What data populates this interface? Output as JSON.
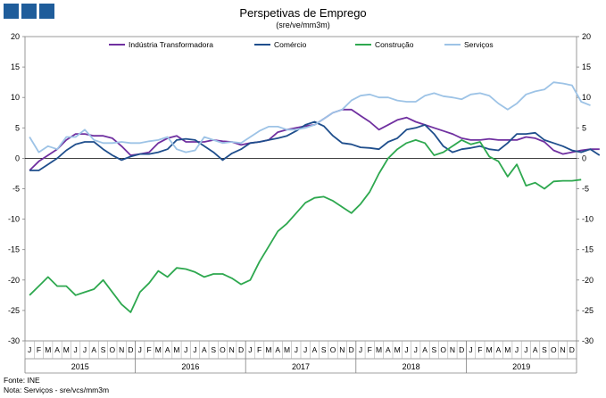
{
  "header": {
    "title": "Perspetivas de Emprego",
    "subtitle": "(sre/ve/mm3m)"
  },
  "footer": {
    "source": "Fonte: INE",
    "note": "Nota: Serviços - sre/vcs/mm3m"
  },
  "chart_data": {
    "type": "line",
    "title": "Perspetivas de Emprego",
    "subtitle": "(sre/ve/mm3m)",
    "xlabel": "",
    "ylabel": "",
    "ylim": [
      -30,
      20
    ],
    "yticks": [
      20,
      15,
      10,
      5,
      0,
      -5,
      -10,
      -15,
      -20,
      -25,
      -30
    ],
    "month_labels": [
      "J",
      "F",
      "M",
      "A",
      "M",
      "J",
      "J",
      "A",
      "S",
      "O",
      "N",
      "D"
    ],
    "years": [
      "2015",
      "2016",
      "2017",
      "2018",
      "2019"
    ],
    "grid": false,
    "legend_position": "top",
    "series": [
      {
        "name": "Indústria Transformadora",
        "color": "#7030a0",
        "values": [
          -2.0,
          -0.5,
          0.5,
          1.5,
          3.0,
          4.0,
          4.0,
          3.7,
          3.7,
          3.3,
          2.0,
          0.5,
          0.7,
          1.0,
          2.5,
          3.3,
          3.7,
          2.7,
          2.7,
          2.7,
          3.0,
          2.8,
          2.7,
          2.2,
          2.5,
          2.7,
          3.0,
          4.3,
          4.7,
          5.0,
          5.3,
          5.5,
          6.5,
          7.5,
          8.0,
          8.0,
          7.0,
          6.0,
          4.7,
          5.5,
          6.3,
          6.7,
          6.0,
          5.5,
          5.0,
          4.5,
          4.0,
          3.3,
          3.0,
          3.0,
          3.2,
          3.0,
          3.0,
          3.0,
          3.5,
          3.3,
          2.7,
          1.3,
          0.7,
          1.0,
          1.3,
          1.5,
          1.5
        ]
      },
      {
        "name": "Comércio",
        "color": "#1f4e8c",
        "values": [
          -2.0,
          -2.0,
          -1.0,
          0.0,
          1.3,
          2.3,
          2.7,
          2.7,
          1.5,
          0.5,
          -0.3,
          0.3,
          0.7,
          0.7,
          1.0,
          1.5,
          3.0,
          3.2,
          3.0,
          2.0,
          1.0,
          -0.3,
          0.8,
          1.5,
          2.5,
          2.7,
          3.0,
          3.3,
          3.7,
          4.5,
          5.5,
          6.0,
          5.3,
          3.7,
          2.5,
          2.3,
          1.8,
          1.7,
          1.5,
          2.7,
          3.3,
          4.7,
          5.0,
          5.5,
          4.0,
          2.0,
          1.0,
          1.5,
          1.7,
          2.0,
          1.5,
          1.3,
          2.5,
          4.0,
          4.0,
          4.2,
          3.0,
          2.5,
          2.0,
          1.3,
          1.0,
          1.5,
          0.5
        ]
      },
      {
        "name": "Construção",
        "color": "#2ea84f",
        "values": [
          -22.5,
          -21.0,
          -19.5,
          -21.0,
          -21.0,
          -22.5,
          -22.0,
          -21.5,
          -20.0,
          -22.0,
          -24.0,
          -25.3,
          -22.0,
          -20.5,
          -18.5,
          -19.5,
          -18.0,
          -18.2,
          -18.7,
          -19.5,
          -19.0,
          -19.0,
          -19.7,
          -20.7,
          -20.0,
          -17.0,
          -14.5,
          -12.0,
          -10.7,
          -9.0,
          -7.3,
          -6.5,
          -6.3,
          -7.0,
          -8.0,
          -9.0,
          -7.5,
          -5.5,
          -2.5,
          0.0,
          1.5,
          2.5,
          3.0,
          2.5,
          0.5,
          1.0,
          2.0,
          3.0,
          2.3,
          2.7,
          0.3,
          -0.5,
          -3.0,
          -1.0,
          -4.5,
          -4.0,
          -5.0,
          -3.8,
          -3.7,
          -3.7,
          -3.5
        ]
      },
      {
        "name": "Serviços",
        "color": "#9dc3e6",
        "values": [
          3.5,
          1.0,
          2.0,
          1.5,
          3.5,
          3.5,
          4.7,
          3.0,
          2.5,
          2.5,
          2.7,
          2.5,
          2.5,
          2.8,
          3.0,
          3.5,
          1.5,
          1.0,
          1.3,
          3.5,
          3.0,
          2.5,
          2.7,
          2.5,
          3.5,
          4.5,
          5.2,
          5.2,
          4.7,
          4.7,
          5.0,
          5.5,
          6.5,
          7.5,
          8.0,
          9.5,
          10.3,
          10.5,
          10.0,
          10.0,
          9.5,
          9.3,
          9.3,
          10.3,
          10.7,
          10.2,
          10.0,
          9.7,
          10.5,
          10.7,
          10.3,
          9.0,
          8.0,
          9.0,
          10.5,
          11.0,
          11.3,
          12.5,
          12.3,
          12.0,
          9.3,
          8.7
        ]
      }
    ]
  }
}
